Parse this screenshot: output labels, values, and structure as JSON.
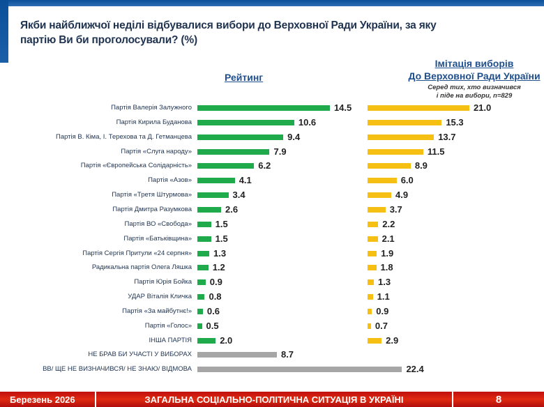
{
  "title": "Якби найближчої неділі відбувалися вибори до Верховної Ради України, за яку партію Ви би проголосували? (%)",
  "footer": {
    "date": "Березень 2026",
    "section": "ЗАГАЛЬНА СОЦІАЛЬНО-ПОЛІТИЧНА СИТУАЦІЯ В УКРАЇНІ",
    "page": "8"
  },
  "colors": {
    "rating": "#1faa4b",
    "imitation": "#f5bf14",
    "other": "#a6a6a6",
    "footer": "#d41c10",
    "header": "#0a4f98"
  },
  "chart_data": {
    "type": "bar",
    "orientation": "horizontal",
    "headers": {
      "rating": "Рейтинг",
      "imitation_line1": "Імітація виборів",
      "imitation_line2": "До Верховної Ради України",
      "imitation_sub1": "Серед тих, хто визначився",
      "imitation_sub2": "і піде на вибори, n=829"
    },
    "categories": [
      "Партія Валерія Залужного",
      "Партія Кирила Буданова",
      "Партія В. Кіма,  І. Терехова та Д. Гетманцева",
      "Партія «Слуга народу»",
      "Партія «Європейська Солідарність»",
      "Партія «Азов»",
      "Партія «Третя Штурмова»",
      "Партія Дмитра Разумкова",
      "Партія ВО «Свобода»",
      "Партія «Батьківщина»",
      "Партія Сергія Притули «24 серпня»",
      "Радикальна партія Олега Ляшка",
      "Партія Юрія Бойка",
      "УДАР Віталія Кличка",
      "Партія «За майбутнє!»",
      "Партія «Голос»",
      "ІНША ПАРТІЯ",
      "НЕ БРАВ БИ УЧАСТІ У ВИБОРАХ",
      "ВВ/ ЩЕ НЕ ВИЗНАЧИВСЯ/ НЕ ЗНАЮ/ ВІДМОВА"
    ],
    "series": [
      {
        "name": "Рейтинг",
        "values": [
          14.5,
          10.6,
          9.4,
          7.9,
          6.2,
          4.1,
          3.4,
          2.6,
          1.5,
          1.5,
          1.3,
          1.2,
          0.9,
          0.8,
          0.6,
          0.5,
          2.0,
          8.7,
          22.4
        ]
      },
      {
        "name": "Імітація виборів До Верховної Ради України",
        "values": [
          21.0,
          15.3,
          13.7,
          11.5,
          8.9,
          6.0,
          4.9,
          3.7,
          2.2,
          2.1,
          1.9,
          1.8,
          1.3,
          1.1,
          0.9,
          0.7,
          2.9,
          null,
          null
        ]
      }
    ]
  }
}
